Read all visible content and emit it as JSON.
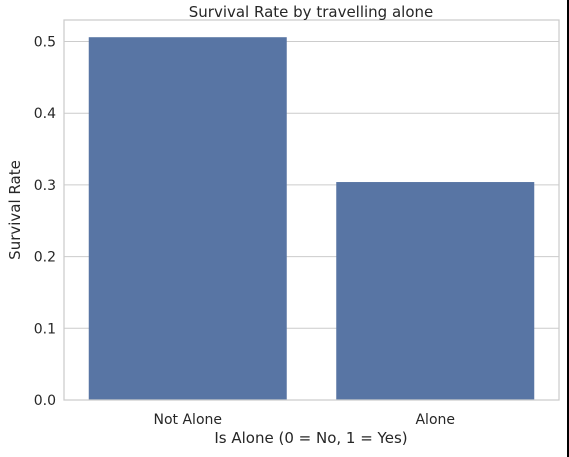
{
  "chart_data": {
    "type": "bar",
    "title": "Survival Rate by travelling alone",
    "xlabel": "Is Alone (0 = No, 1 = Yes)",
    "ylabel": "Survival Rate",
    "categories": [
      "Not Alone",
      "Alone"
    ],
    "values": [
      0.506,
      0.304
    ],
    "ylim": [
      0,
      0.53
    ],
    "yticks": [
      "0.0",
      "0.1",
      "0.2",
      "0.3",
      "0.4",
      "0.5"
    ],
    "ytick_values": [
      0,
      0.1,
      0.2,
      0.3,
      0.4,
      0.5
    ],
    "grid": "horizontal",
    "bar_color": "#5875a4",
    "grid_color": "#cccccc"
  }
}
